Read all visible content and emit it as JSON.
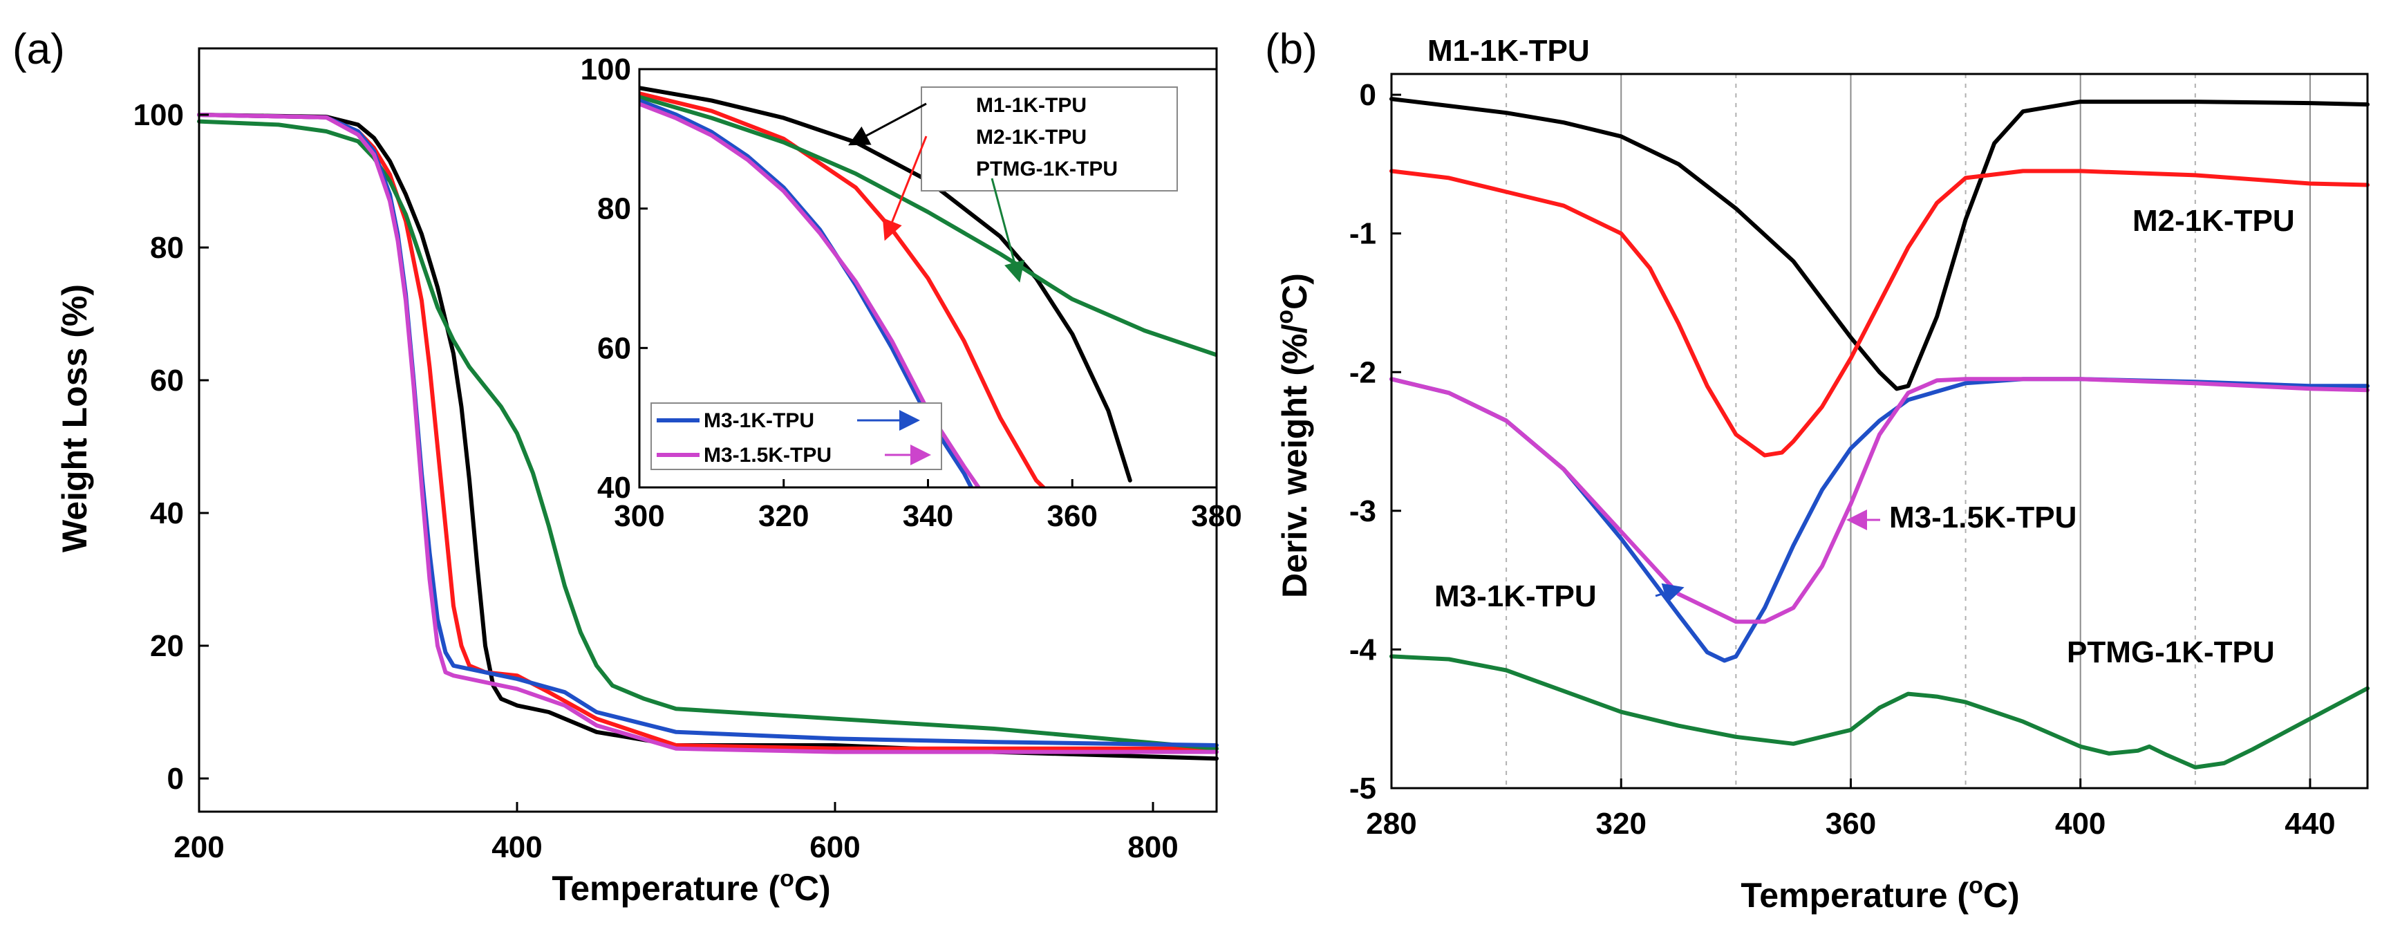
{
  "colors": {
    "M1-1K-TPU": "#000000",
    "M2-1K-TPU": "#ff1a1a",
    "PTMG-1K-TPU": "#16803a",
    "M3-1K-TPU": "#1f4fc7",
    "M3-1.5K-TPU": "#cc44cc"
  },
  "chart_data": [
    {
      "id": "a",
      "panel_label": "(a)",
      "type": "line",
      "xlabel": "Temperature (°C)",
      "xlabel_main": "Temperature (",
      "xlabel_sup": "o",
      "xlabel_end": "C)",
      "ylabel": "Weight Loss (%)",
      "xlim": [
        200,
        840
      ],
      "ylim": [
        -5,
        110
      ],
      "xticks": [
        200,
        400,
        600,
        800
      ],
      "yticks": [
        0,
        20,
        40,
        60,
        80,
        100
      ],
      "series": [
        {
          "name": "M1-1K-TPU",
          "x": [
            200,
            280,
            300,
            310,
            320,
            330,
            340,
            350,
            360,
            365,
            370,
            375,
            380,
            385,
            390,
            400,
            420,
            450,
            500,
            600,
            700,
            840
          ],
          "y": [
            100,
            99.7,
            98.5,
            96.5,
            93,
            88,
            82,
            74,
            64,
            56,
            45,
            32,
            20,
            14,
            12,
            11,
            10,
            7,
            5,
            5,
            4,
            3
          ]
        },
        {
          "name": "M2-1K-TPU",
          "x": [
            200,
            280,
            300,
            310,
            320,
            330,
            340,
            345,
            350,
            355,
            360,
            365,
            370,
            380,
            400,
            420,
            450,
            500,
            600,
            700,
            840
          ],
          "y": [
            100,
            99.6,
            97.5,
            95,
            91,
            84,
            72,
            62,
            50,
            38,
            26,
            20,
            17,
            16,
            15.5,
            13,
            9,
            5,
            4.5,
            4.5,
            4.5
          ]
        },
        {
          "name": "PTMG-1K-TPU",
          "x": [
            200,
            250,
            280,
            300,
            310,
            320,
            330,
            340,
            350,
            360,
            370,
            380,
            390,
            400,
            410,
            420,
            430,
            440,
            450,
            460,
            480,
            500,
            600,
            700,
            840
          ],
          "y": [
            99,
            98.5,
            97.5,
            96,
            93.5,
            90,
            85,
            78,
            71,
            66,
            62,
            59,
            56,
            52,
            46,
            38,
            29,
            22,
            17,
            14,
            12,
            10.5,
            9,
            7.5,
            4.5
          ]
        },
        {
          "name": "M3-1K-TPU",
          "x": [
            200,
            280,
            300,
            310,
            320,
            325,
            330,
            335,
            340,
            345,
            350,
            355,
            360,
            380,
            400,
            430,
            450,
            500,
            600,
            700,
            840
          ],
          "y": [
            100,
            99.6,
            97.5,
            94.5,
            88,
            82,
            73,
            60,
            46,
            34,
            24,
            19,
            17,
            16,
            15,
            13,
            10,
            7,
            6,
            5.5,
            5
          ]
        },
        {
          "name": "M3-1.5K-TPU",
          "x": [
            200,
            280,
            300,
            310,
            320,
            325,
            330,
            335,
            340,
            345,
            350,
            355,
            360,
            380,
            400,
            430,
            450,
            500,
            600,
            700,
            840
          ],
          "y": [
            100,
            99.6,
            97,
            94,
            87,
            81,
            72,
            59,
            44,
            30,
            20,
            16,
            15.5,
            14.5,
            13.5,
            11,
            8,
            4.5,
            4,
            4,
            4
          ]
        }
      ],
      "inset": {
        "xlim": [
          300,
          380
        ],
        "ylim": [
          40,
          100
        ],
        "xticks": [
          300,
          320,
          340,
          360,
          380
        ],
        "yticks": [
          40,
          60,
          80,
          100
        ],
        "legend": [
          "M1-1K-TPU",
          "M2-1K-TPU",
          "PTMG-1K-TPU",
          "M3-1K-TPU",
          "M3-1.5K-TPU"
        ],
        "series": [
          {
            "name": "M1-1K-TPU",
            "x": [
              300,
              310,
              320,
              330,
              340,
              350,
              355,
              360,
              365,
              368
            ],
            "y": [
              97.3,
              95.5,
              93,
              89.5,
              84,
              76,
              70,
              62,
              51,
              41
            ]
          },
          {
            "name": "M2-1K-TPU",
            "x": [
              300,
              310,
              320,
              325,
              330,
              335,
              340,
              345,
              350,
              355,
              356
            ],
            "y": [
              96.5,
              94,
              90,
              86.5,
              83,
              77,
              70,
              61,
              50,
              41,
              40
            ]
          },
          {
            "name": "PTMG-1K-TPU",
            "x": [
              300,
              310,
              320,
              330,
              340,
              350,
              360,
              370,
              380
            ],
            "y": [
              96,
              93,
              89.5,
              85,
              79.5,
              73.5,
              67,
              62.5,
              59
            ]
          },
          {
            "name": "M3-1K-TPU",
            "x": [
              300,
              305,
              310,
              315,
              320,
              325,
              330,
              335,
              340,
              345,
              346
            ],
            "y": [
              95.5,
              93.5,
              91,
              87.5,
              83,
              77,
              69,
              60,
              50,
              42,
              40
            ]
          },
          {
            "name": "M3-1.5K-TPU",
            "x": [
              300,
              305,
              310,
              315,
              320,
              325,
              330,
              335,
              340,
              345,
              347
            ],
            "y": [
              95,
              93,
              90.5,
              87,
              82.5,
              76.5,
              69.5,
              61,
              51,
              43,
              40
            ]
          }
        ]
      }
    },
    {
      "id": "b",
      "panel_label": "(b)",
      "type": "line",
      "xlabel": "Temperature (°C)",
      "xlabel_main": "Temperature (",
      "xlabel_sup": "o",
      "xlabel_end": "C)",
      "ylabel": "Deriv. weight (%/°C)",
      "ylabel_main": "Deriv. weight (%/",
      "ylabel_sup": "o",
      "ylabel_end": "C)",
      "xlim": [
        280,
        450
      ],
      "ylim": [
        -5,
        0.15
      ],
      "xticks": [
        280,
        320,
        360,
        400,
        440
      ],
      "yticks": [
        0,
        -1,
        -2,
        -3,
        -4,
        -5
      ],
      "series": [
        {
          "name": "M1-1K-TPU",
          "x": [
            280,
            290,
            300,
            310,
            320,
            330,
            340,
            350,
            360,
            365,
            368,
            370,
            375,
            380,
            385,
            390,
            400,
            420,
            440,
            450
          ],
          "y": [
            -0.03,
            -0.08,
            -0.13,
            -0.2,
            -0.3,
            -0.5,
            -0.82,
            -1.2,
            -1.75,
            -2,
            -2.12,
            -2.1,
            -1.6,
            -0.9,
            -0.35,
            -0.12,
            -0.05,
            -0.05,
            -0.06,
            -0.07
          ]
        },
        {
          "name": "M2-1K-TPU",
          "x": [
            280,
            290,
            300,
            310,
            320,
            325,
            330,
            335,
            340,
            345,
            348,
            350,
            355,
            360,
            365,
            370,
            375,
            380,
            390,
            400,
            420,
            440,
            450
          ],
          "y": [
            -0.55,
            -0.6,
            -0.7,
            -0.8,
            -1.0,
            -1.25,
            -1.65,
            -2.1,
            -2.45,
            -2.6,
            -2.58,
            -2.5,
            -2.25,
            -1.9,
            -1.5,
            -1.1,
            -0.78,
            -0.6,
            -0.55,
            -0.55,
            -0.58,
            -0.64,
            -0.65
          ]
        },
        {
          "name": "M3-1K-TPU",
          "x": [
            280,
            290,
            300,
            310,
            320,
            330,
            335,
            338,
            340,
            345,
            350,
            355,
            360,
            365,
            370,
            380,
            390,
            400,
            420,
            440,
            450
          ],
          "y": [
            -2.05,
            -2.15,
            -2.35,
            -2.7,
            -3.2,
            -3.75,
            -4.02,
            -4.08,
            -4.05,
            -3.7,
            -3.25,
            -2.85,
            -2.55,
            -2.35,
            -2.2,
            -2.08,
            -2.05,
            -2.05,
            -2.07,
            -2.1,
            -2.1
          ]
        },
        {
          "name": "M3-1.5K-TPU",
          "x": [
            280,
            290,
            300,
            310,
            320,
            330,
            340,
            345,
            350,
            355,
            360,
            365,
            370,
            375,
            380,
            390,
            400,
            420,
            440,
            450
          ],
          "y": [
            -2.05,
            -2.15,
            -2.35,
            -2.7,
            -3.15,
            -3.6,
            -3.8,
            -3.8,
            -3.7,
            -3.4,
            -2.95,
            -2.45,
            -2.15,
            -2.06,
            -2.05,
            -2.05,
            -2.05,
            -2.08,
            -2.12,
            -2.13
          ]
        },
        {
          "name": "PTMG-1K-TPU",
          "x": [
            280,
            290,
            300,
            310,
            320,
            330,
            340,
            350,
            360,
            365,
            370,
            375,
            380,
            390,
            400,
            405,
            410,
            412,
            415,
            420,
            425,
            430,
            440,
            450
          ],
          "y": [
            -4.05,
            -4.07,
            -4.15,
            -4.3,
            -4.45,
            -4.55,
            -4.63,
            -4.68,
            -4.58,
            -4.42,
            -4.32,
            -4.34,
            -4.38,
            -4.52,
            -4.7,
            -4.75,
            -4.73,
            -4.7,
            -4.76,
            -4.85,
            -4.82,
            -4.72,
            -4.5,
            -4.28
          ]
        }
      ]
    }
  ]
}
